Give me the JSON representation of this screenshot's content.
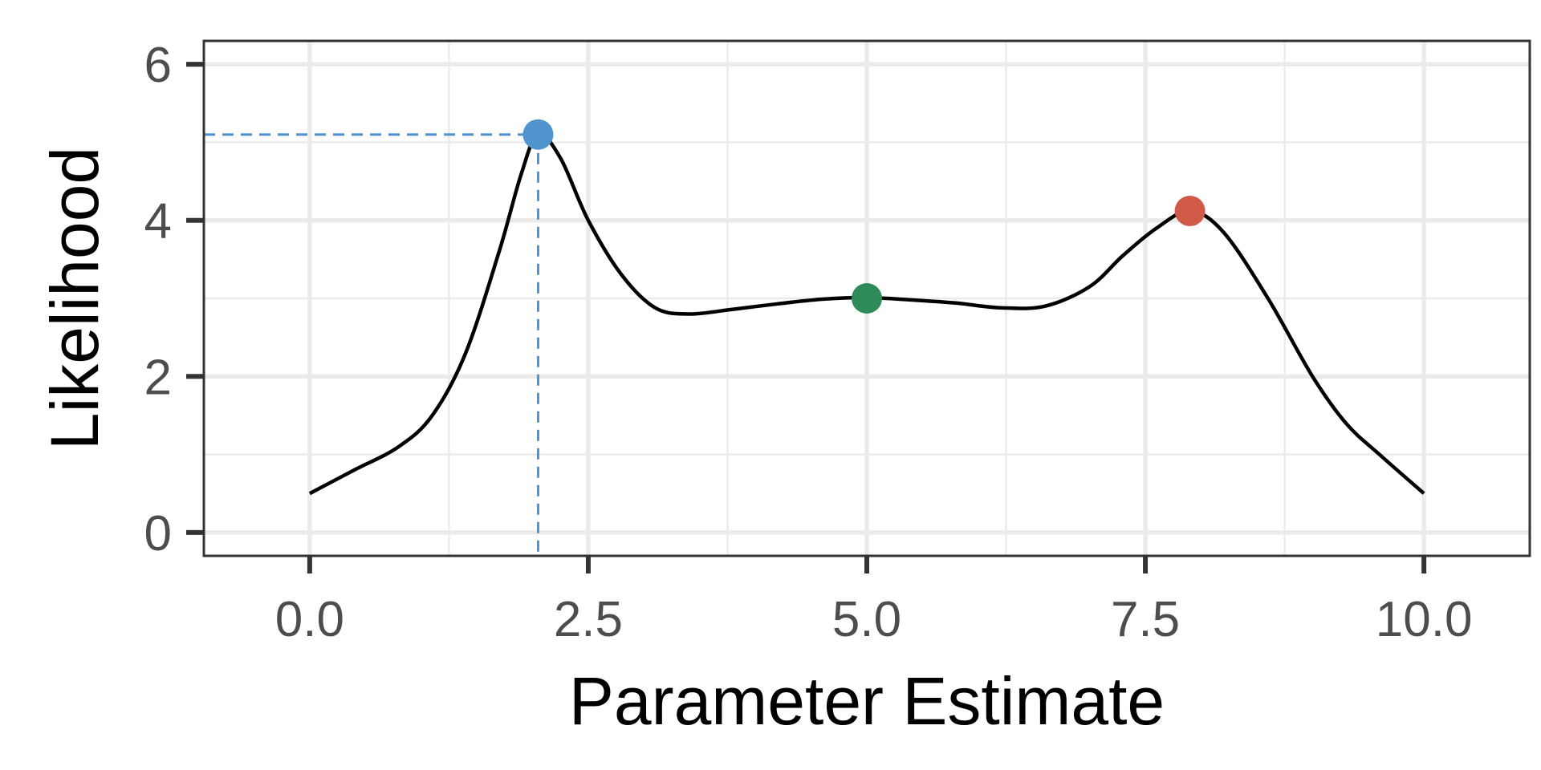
{
  "chart_data": {
    "type": "line",
    "title": "",
    "xlabel": "Parameter Estimate",
    "ylabel": "Likelihood",
    "xlim": [
      -0.95,
      10.95
    ],
    "ylim": [
      -0.3,
      6.3
    ],
    "x_ticks": [
      0,
      2.5,
      5,
      7.5,
      10
    ],
    "x_tick_labels": [
      "0.0",
      "2.5",
      "5.0",
      "7.5",
      "10.0"
    ],
    "y_ticks": [
      0,
      2,
      4,
      6
    ],
    "y_tick_labels": [
      "0",
      "2",
      "4",
      "6"
    ],
    "grid": true,
    "legend": "none",
    "series": [
      {
        "x": [
          0.0,
          0.4,
          0.8,
          1.1,
          1.4,
          1.7,
          1.9,
          2.05,
          2.25,
          2.5,
          2.8,
          3.1,
          3.4,
          3.8,
          4.2,
          4.6,
          5.0,
          5.4,
          5.8,
          6.2,
          6.6,
          7.0,
          7.3,
          7.6,
          7.9,
          8.2,
          8.6,
          9.0,
          9.3,
          9.6,
          10.0
        ],
        "y": [
          0.5,
          0.8,
          1.1,
          1.5,
          2.3,
          3.6,
          4.6,
          5.1,
          4.8,
          4.0,
          3.3,
          2.88,
          2.8,
          2.86,
          2.93,
          2.99,
          3.01,
          2.98,
          2.94,
          2.88,
          2.9,
          3.15,
          3.55,
          3.9,
          4.12,
          3.85,
          3.0,
          2.0,
          1.4,
          1.0,
          0.5
        ],
        "color": "#000000"
      }
    ],
    "highlight_points": [
      {
        "x": 2.05,
        "y": 5.1,
        "color": "#4f94cd"
      },
      {
        "x": 5.0,
        "y": 3.0,
        "color": "#2e8b57"
      },
      {
        "x": 7.9,
        "y": 4.12,
        "color": "#d05a48"
      }
    ],
    "reference_lines": [
      {
        "x": 2.05,
        "y": 5.1,
        "color": "#4f94cd",
        "style": "dashed"
      }
    ],
    "colors": {
      "panel_background": "#ffffff",
      "grid_major": "#ebebeb",
      "grid_minor": "#ebebeb",
      "panel_border": "#333333",
      "tick_mark": "#333333"
    }
  }
}
